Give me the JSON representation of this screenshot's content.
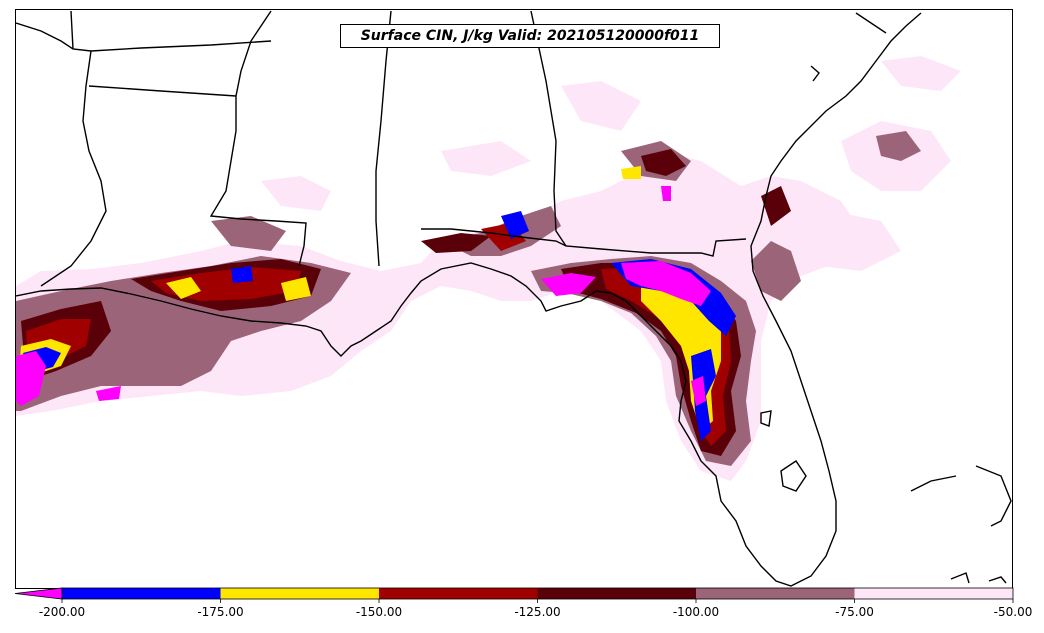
{
  "map": {
    "title": "Surface CIN, J/kg Valid: 202105120000f011",
    "field": "Surface CIN",
    "units": "J/kg"
  },
  "colorbar": {
    "extend": "min",
    "under_color": "#ff00ff",
    "levels": [
      {
        "from": -200,
        "to": -175,
        "color": "#0000ff"
      },
      {
        "from": -175,
        "to": -150,
        "color": "#ffe600"
      },
      {
        "from": -150,
        "to": -125,
        "color": "#a00000"
      },
      {
        "from": -125,
        "to": -100,
        "color": "#5a0008"
      },
      {
        "from": -100,
        "to": -75,
        "color": "#9b6478"
      },
      {
        "from": -75,
        "to": -50,
        "color": "#fde6f7"
      }
    ],
    "tick_labels": [
      "-200.00",
      "-175.00",
      "-150.00",
      "-125.00",
      "-100.00",
      "-75.00",
      "-50.00"
    ]
  },
  "colors": {
    "coast": "#000000",
    "background": "#ffffff"
  }
}
